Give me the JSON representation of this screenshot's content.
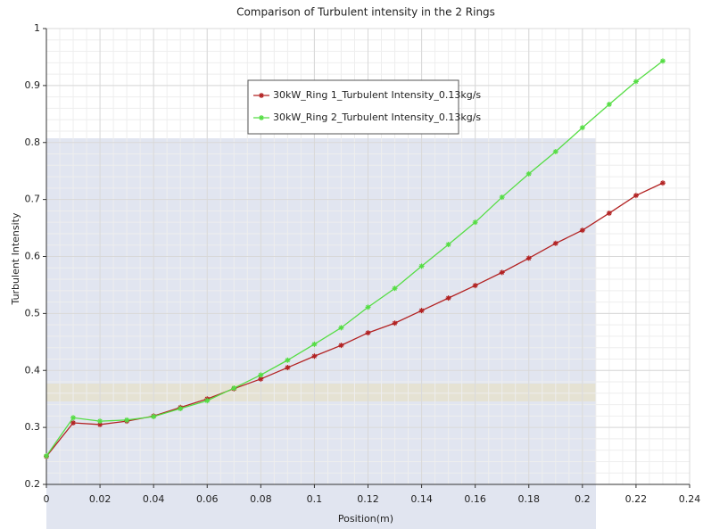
{
  "chart_data": {
    "type": "line",
    "title": "Comparison of Turbulent intensity in the 2 Rings",
    "x_label": "Position(m)",
    "y_label": "Turbulent Intensity",
    "x": [
      0,
      0.01,
      0.02,
      0.03,
      0.04,
      0.05,
      0.06,
      0.07,
      0.08,
      0.09,
      0.1,
      0.11,
      0.12,
      0.13,
      0.14,
      0.15,
      0.16,
      0.17,
      0.18,
      0.19,
      0.2,
      0.21,
      0.22,
      0.23
    ],
    "series": [
      {
        "name": "30kW_Ring 1_Turbulent Intensity_0.13kg/s",
        "color": "#b22222",
        "values": [
          0.249,
          0.308,
          0.305,
          0.311,
          0.32,
          0.335,
          0.35,
          0.368,
          0.385,
          0.405,
          0.425,
          0.444,
          0.466,
          0.483,
          0.505,
          0.527,
          0.549,
          0.572,
          0.597,
          0.623,
          0.646,
          0.676,
          0.707,
          0.729
        ]
      },
      {
        "name": "30kW_Ring 2_Turbulent Intensity_0.13kg/s",
        "color": "#55dd44",
        "values": [
          0.25,
          0.317,
          0.311,
          0.313,
          0.319,
          0.333,
          0.347,
          0.369,
          0.392,
          0.418,
          0.446,
          0.475,
          0.511,
          0.544,
          0.583,
          0.621,
          0.66,
          0.704,
          0.745,
          0.784,
          0.826,
          0.867,
          0.907,
          0.943
        ]
      }
    ],
    "xlim": [
      0,
      0.24
    ],
    "xticks": [
      0,
      0.02,
      0.04,
      0.06,
      0.08,
      0.1,
      0.12,
      0.14,
      0.16,
      0.18,
      0.2,
      0.22,
      0.24
    ],
    "ylim": [
      0.2,
      1
    ],
    "yticks": [
      0.2,
      0.3,
      0.4,
      0.5,
      0.6,
      0.7,
      0.8,
      0.9,
      1
    ],
    "grid": true
  }
}
